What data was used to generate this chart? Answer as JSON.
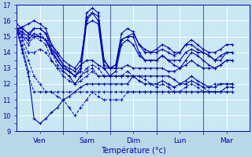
{
  "xlabel": "Température (°c)",
  "ylim": [
    9,
    17
  ],
  "yticks": [
    9,
    10,
    11,
    12,
    13,
    14,
    15,
    16,
    17
  ],
  "xtick_labels": [
    "Ven",
    "Sam",
    "Dim",
    "Lun",
    "Mar"
  ],
  "background_color": "#b8d8e8",
  "plot_bg_color": "#c8e8f4",
  "grid_color": "#ffffff",
  "minor_grid_color": "#d8eef8",
  "line_color": "#0000bb",
  "figsize": [
    3.2,
    2.0
  ],
  "dpi": 100,
  "n_days": 5,
  "hours_per_day": 24,
  "series": [
    [
      0,
      15.5,
      3,
      15.6,
      6,
      15.8,
      9,
      16.0,
      12,
      15.8,
      15,
      15.5,
      18,
      14.5,
      21,
      14.0,
      24,
      13.5,
      27,
      13.2,
      30,
      13.0,
      33,
      13.5,
      36,
      16.0,
      39,
      16.5,
      42,
      16.3,
      45,
      13.5,
      48,
      13.0,
      51,
      13.2,
      54,
      14.8,
      57,
      15.0,
      60,
      15.2,
      63,
      14.5,
      66,
      14.2,
      69,
      14.0,
      72,
      14.2,
      75,
      14.5,
      78,
      14.3,
      81,
      14.0,
      84,
      14.0,
      87,
      14.5,
      90,
      14.8,
      93,
      14.5,
      96,
      14.2,
      99,
      14.0,
      102,
      14.0,
      105,
      14.2,
      108,
      14.5,
      111,
      14.5
    ],
    [
      0,
      15.5,
      3,
      15.3,
      6,
      15.0,
      9,
      15.5,
      12,
      15.5,
      15,
      15.2,
      18,
      14.2,
      21,
      13.5,
      24,
      13.0,
      27,
      12.8,
      30,
      12.5,
      33,
      13.0,
      36,
      16.2,
      39,
      16.5,
      42,
      16.0,
      45,
      13.2,
      48,
      13.0,
      51,
      13.0,
      54,
      14.8,
      57,
      15.0,
      60,
      15.0,
      63,
      14.0,
      66,
      13.5,
      69,
      13.5,
      72,
      13.5,
      75,
      13.8,
      78,
      13.5,
      81,
      13.2,
      84,
      13.0,
      87,
      13.5,
      90,
      14.0,
      93,
      13.8,
      96,
      13.5,
      99,
      13.2,
      102,
      13.0,
      105,
      13.2,
      108,
      13.5,
      111,
      13.5
    ],
    [
      0,
      15.5,
      3,
      15.0,
      6,
      14.5,
      9,
      15.0,
      12,
      14.8,
      15,
      14.5,
      18,
      13.5,
      21,
      13.0,
      24,
      12.5,
      27,
      12.2,
      30,
      12.0,
      33,
      12.2,
      36,
      12.5,
      39,
      12.8,
      42,
      12.5,
      45,
      12.5,
      48,
      12.5,
      51,
      12.5,
      54,
      12.5,
      57,
      12.5,
      60,
      12.5,
      63,
      12.5,
      66,
      12.3,
      69,
      12.0,
      72,
      12.0,
      75,
      12.2,
      78,
      12.0,
      81,
      11.8,
      84,
      12.0,
      87,
      12.0,
      90,
      12.2,
      93,
      12.0,
      96,
      11.8,
      99,
      11.8,
      102,
      12.0,
      105,
      12.0,
      108,
      12.0,
      111,
      12.0
    ],
    [
      0,
      15.5,
      3,
      15.0,
      6,
      14.8,
      9,
      15.2,
      12,
      15.0,
      15,
      14.8,
      18,
      14.0,
      21,
      13.5,
      24,
      13.0,
      27,
      12.8,
      30,
      12.5,
      33,
      12.8,
      36,
      16.5,
      39,
      16.8,
      42,
      16.5,
      45,
      13.5,
      48,
      13.0,
      51,
      13.2,
      54,
      15.2,
      57,
      15.5,
      60,
      15.3,
      63,
      14.5,
      66,
      14.0,
      69,
      14.0,
      72,
      14.0,
      75,
      14.2,
      78,
      14.0,
      81,
      13.8,
      84,
      14.0,
      87,
      14.5,
      90,
      14.5,
      93,
      14.2,
      96,
      14.0,
      99,
      13.8,
      102,
      13.5,
      105,
      13.8,
      108,
      14.0,
      111,
      14.0
    ],
    [
      0,
      15.5,
      3,
      15.2,
      6,
      14.8,
      9,
      15.0,
      12,
      15.2,
      15,
      14.8,
      18,
      14.0,
      21,
      13.2,
      24,
      12.8,
      27,
      12.5,
      30,
      12.0,
      33,
      12.5,
      36,
      12.8,
      39,
      13.0,
      42,
      12.5,
      45,
      12.5,
      48,
      12.5,
      51,
      12.5,
      54,
      12.5,
      57,
      12.8,
      60,
      12.5,
      63,
      12.2,
      66,
      12.0,
      69,
      12.0,
      72,
      12.0,
      75,
      12.2,
      78,
      12.0,
      81,
      11.8,
      84,
      12.0,
      87,
      12.0,
      90,
      12.2,
      93,
      12.0,
      96,
      11.8,
      99,
      11.5,
      102,
      11.5,
      105,
      11.5,
      108,
      11.8,
      111,
      11.8
    ],
    [
      0,
      15.5,
      3,
      15.5,
      6,
      15.2,
      9,
      15.5,
      12,
      15.5,
      15,
      15.2,
      18,
      14.5,
      21,
      13.8,
      24,
      13.2,
      27,
      13.0,
      30,
      12.8,
      33,
      13.2,
      36,
      13.5,
      39,
      13.5,
      42,
      13.2,
      45,
      13.0,
      48,
      13.0,
      51,
      13.0,
      54,
      13.0,
      57,
      13.2,
      60,
      13.0,
      63,
      13.0,
      66,
      13.0,
      69,
      13.0,
      72,
      13.0,
      75,
      13.0,
      78,
      12.8,
      81,
      12.8,
      84,
      13.0,
      87,
      13.2,
      90,
      13.5,
      93,
      13.2,
      96,
      13.0,
      99,
      13.0,
      102,
      13.0,
      105,
      13.2,
      108,
      13.5,
      111,
      13.5
    ],
    [
      0,
      15.5,
      3,
      14.5,
      6,
      13.5,
      9,
      12.5,
      12,
      12.0,
      15,
      11.5,
      18,
      11.5,
      21,
      11.2,
      24,
      11.0,
      27,
      10.5,
      30,
      10.0,
      33,
      10.5,
      36,
      11.0,
      39,
      11.5,
      42,
      11.2,
      45,
      11.0,
      48,
      11.0,
      51,
      11.0,
      54,
      11.0,
      57,
      11.5,
      60,
      11.5,
      63,
      11.5,
      66,
      11.5,
      69,
      11.5,
      72,
      11.5,
      75,
      11.5,
      78,
      11.5,
      81,
      11.5,
      84,
      11.5,
      87,
      11.5,
      90,
      11.5,
      93,
      11.5,
      96,
      11.5,
      99,
      11.5,
      102,
      11.5,
      105,
      11.5,
      108,
      11.5,
      111,
      11.5
    ],
    [
      0,
      15.5,
      3,
      14.0,
      6,
      12.5,
      9,
      11.5,
      12,
      11.5,
      15,
      11.5,
      18,
      11.5,
      21,
      11.5,
      24,
      11.5,
      27,
      11.5,
      30,
      11.5,
      33,
      11.5,
      36,
      11.5,
      39,
      11.5,
      42,
      11.5,
      45,
      11.5,
      48,
      11.5,
      51,
      11.5,
      54,
      11.5,
      57,
      11.5,
      60,
      11.5,
      63,
      11.5,
      66,
      11.5,
      69,
      11.5,
      72,
      11.5,
      75,
      11.5,
      78,
      11.5,
      81,
      11.5,
      84,
      11.5,
      87,
      11.5,
      90,
      11.5,
      93,
      11.5,
      96,
      11.5,
      99,
      11.5,
      102,
      11.5,
      105,
      11.5,
      108,
      11.5,
      111,
      11.5
    ],
    [
      0,
      15.8,
      3,
      15.5,
      6,
      15.2,
      9,
      15.0,
      12,
      15.0,
      15,
      14.8,
      18,
      14.2,
      21,
      13.8,
      24,
      13.2,
      27,
      12.8,
      30,
      12.5,
      33,
      12.8,
      36,
      15.8,
      39,
      16.0,
      42,
      15.8,
      45,
      13.0,
      48,
      12.5,
      51,
      12.8,
      54,
      14.5,
      57,
      14.8,
      60,
      14.5,
      63,
      13.8,
      66,
      13.5,
      69,
      13.5,
      72,
      13.5,
      75,
      13.8,
      78,
      13.5,
      81,
      13.5,
      84,
      13.5,
      87,
      14.0,
      90,
      14.2,
      93,
      14.0,
      96,
      14.0,
      99,
      13.8,
      102,
      13.5,
      105,
      13.5,
      108,
      14.0,
      111,
      14.0
    ],
    [
      0,
      15.5,
      3,
      14.8,
      6,
      14.0,
      9,
      14.0,
      12,
      14.2,
      15,
      14.0,
      18,
      13.5,
      21,
      13.0,
      24,
      12.8,
      27,
      12.5,
      30,
      12.0,
      33,
      12.5,
      36,
      13.0,
      39,
      13.2,
      42,
      13.0,
      45,
      12.5,
      48,
      12.5,
      51,
      12.5,
      54,
      12.5,
      57,
      12.5,
      60,
      12.5,
      63,
      12.2,
      66,
      12.0,
      69,
      12.0,
      72,
      11.8,
      75,
      12.0,
      78,
      11.8,
      81,
      11.5,
      84,
      11.5,
      87,
      11.8,
      90,
      12.0,
      93,
      11.8,
      96,
      11.5,
      99,
      11.5,
      102,
      11.5,
      105,
      11.5,
      108,
      11.8,
      111,
      11.8
    ],
    [
      0,
      15.5,
      3,
      14.2,
      6,
      12.8,
      9,
      9.8,
      12,
      9.5,
      15,
      9.8,
      18,
      10.2,
      21,
      10.5,
      24,
      11.0,
      27,
      11.2,
      30,
      11.5,
      33,
      11.8,
      36,
      12.0,
      39,
      12.0,
      42,
      12.0,
      45,
      12.0,
      48,
      12.0,
      51,
      12.0,
      54,
      12.0,
      57,
      12.0,
      60,
      12.5,
      63,
      12.5,
      66,
      12.5,
      69,
      12.5,
      72,
      12.5,
      75,
      12.5,
      78,
      12.5,
      81,
      12.3,
      84,
      12.0,
      87,
      12.2,
      90,
      12.5,
      93,
      12.2,
      96,
      12.0,
      99,
      11.8,
      102,
      11.8,
      105,
      12.0,
      108,
      12.0,
      111,
      12.0
    ]
  ],
  "series_styles": [
    {
      "ls": "-",
      "lw": 0.8
    },
    {
      "ls": "-",
      "lw": 0.8
    },
    {
      "ls": "--",
      "lw": 0.7
    },
    {
      "ls": "-",
      "lw": 0.8
    },
    {
      "ls": "--",
      "lw": 0.7
    },
    {
      "ls": "-",
      "lw": 0.8
    },
    {
      "ls": "--",
      "lw": 0.7
    },
    {
      "ls": "--",
      "lw": 0.7
    },
    {
      "ls": "-",
      "lw": 0.8
    },
    {
      "ls": "--",
      "lw": 0.7
    },
    {
      "ls": "-",
      "lw": 0.8
    }
  ],
  "day_boundaries": [
    0,
    24,
    48,
    72,
    96,
    120
  ],
  "vline_color": "#5566aa"
}
